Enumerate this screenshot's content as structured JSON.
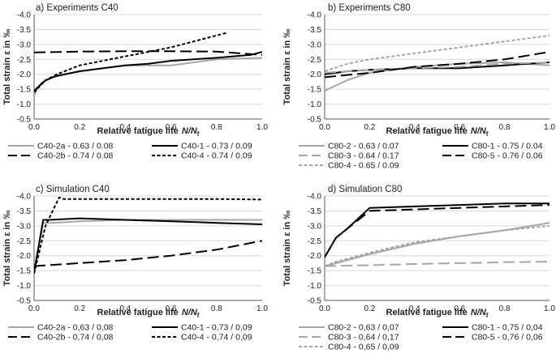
{
  "chart_data": [
    {
      "type": "line",
      "title": "a) Experiments C40",
      "xlabel": "Relative fatigue life",
      "xlabel_symbol": "N/N",
      "xlabel_sub": "f",
      "ylabel": "Total strain ε in ‰",
      "xlim": [
        0,
        1
      ],
      "ylim": [
        -4.0,
        -0.5
      ],
      "xticks": [
        "0.0",
        "0.2",
        "0.4",
        "0.6",
        "0.8",
        "1.0"
      ],
      "yticks": [
        "-4.0",
        "-3.5",
        "-3.0",
        "-2.5",
        "-2.0",
        "-1.5",
        "-1.0",
        "-0.5"
      ],
      "grid": true,
      "series": [
        {
          "name": "C40-2a - 0.63 / 0.08",
          "color": "#a6a6a6",
          "style": "solid",
          "x": [
            0,
            0.03,
            0.08,
            0.2,
            0.4,
            0.6,
            0.8,
            1.0
          ],
          "y": [
            -1.3,
            -1.7,
            -1.9,
            -2.1,
            -2.3,
            -2.3,
            -2.5,
            -2.55
          ]
        },
        {
          "name": "C40-1 - 0.73 / 0.09",
          "color": "#000000",
          "style": "solid",
          "x": [
            0,
            0.05,
            0.1,
            0.2,
            0.4,
            0.5,
            0.6,
            0.8,
            0.95,
            1.0
          ],
          "y": [
            -1.45,
            -1.8,
            -1.95,
            -2.1,
            -2.3,
            -2.35,
            -2.45,
            -2.55,
            -2.65,
            -2.75
          ]
        },
        {
          "name": "C40-2b - 0.74 / 0.08",
          "color": "#000000",
          "style": "longdash",
          "x": [
            0,
            0.2,
            0.4,
            0.6,
            0.8,
            1.0
          ],
          "y": [
            -2.73,
            -2.76,
            -2.77,
            -2.77,
            -2.76,
            -2.65
          ]
        },
        {
          "name": "C40-4 - 0.74 / 0.09",
          "color": "#000000",
          "style": "shortdash",
          "x": [
            0,
            0.05,
            0.1,
            0.2,
            0.4,
            0.6,
            0.8,
            0.85
          ],
          "y": [
            -1.4,
            -1.8,
            -2.0,
            -2.3,
            -2.6,
            -2.9,
            -3.3,
            -3.4
          ]
        }
      ]
    },
    {
      "type": "line",
      "title": "b) Experiments C80",
      "xlabel": "Relative fatigue life",
      "xlabel_symbol": "N/N",
      "xlabel_sub": "f",
      "ylabel": "Total strain ε in ‰",
      "xlim": [
        0,
        1
      ],
      "ylim": [
        -4.0,
        -0.5
      ],
      "xticks": [
        "0.0",
        "0.2",
        "0.4",
        "0.6",
        "0.8",
        "1.0"
      ],
      "yticks": [
        "-4.0",
        "-3.5",
        "-3.0",
        "-2.5",
        "-2.0",
        "-1.5",
        "-1.0",
        "-0.5"
      ],
      "grid": true,
      "series": [
        {
          "name": "C80-2 - 0.63 / 0.07",
          "color": "#a6a6a6",
          "style": "solid",
          "x": [
            0,
            0.1,
            0.2,
            0.4,
            0.6,
            0.8,
            1.0
          ],
          "y": [
            -1.45,
            -1.8,
            -2.05,
            -2.25,
            -2.35,
            -2.4,
            -2.3
          ]
        },
        {
          "name": "C80-1 - 0.75 / 0.04",
          "color": "#000000",
          "style": "solid",
          "x": [
            0,
            0.1,
            0.2,
            0.4,
            0.6,
            0.8,
            1.0
          ],
          "y": [
            -2.0,
            -2.1,
            -2.15,
            -2.2,
            -2.2,
            -2.3,
            -2.4
          ]
        },
        {
          "name": "C80-3 - 0.64 / 0.17",
          "color": "#a6a6a6",
          "style": "longdash",
          "x": [
            0,
            0.2,
            0.4,
            0.6,
            0.8,
            1.0
          ],
          "y": [
            -2.05,
            -2.15,
            -2.2,
            -2.25,
            -2.35,
            -2.4
          ]
        },
        {
          "name": "C80-5 - 0.76 / 0.06",
          "color": "#000000",
          "style": "longdash",
          "x": [
            0,
            0.2,
            0.4,
            0.6,
            0.8,
            1.0
          ],
          "y": [
            -1.9,
            -2.05,
            -2.25,
            -2.35,
            -2.5,
            -2.75
          ]
        },
        {
          "name": "C80-4 - 0.65 / 0.09",
          "color": "#a6a6a6",
          "style": "shortdash",
          "x": [
            0,
            0.1,
            0.2,
            0.4,
            0.6,
            0.8,
            1.0
          ],
          "y": [
            -2.1,
            -2.35,
            -2.5,
            -2.7,
            -2.9,
            -3.1,
            -3.3
          ]
        }
      ]
    },
    {
      "type": "line",
      "title": "c) Simulation C40",
      "xlabel": "Relative fatigue life",
      "xlabel_symbol": "N/N",
      "xlabel_sub": "f",
      "ylabel": "Total strain ε in ‰",
      "xlim": [
        0,
        1
      ],
      "ylim": [
        -4.0,
        -0.5
      ],
      "xticks": [
        "0.0",
        "0.2",
        "0.4",
        "0.6",
        "0.8",
        "1.0"
      ],
      "yticks": [
        "-4.0",
        "-3.5",
        "-3.0",
        "-2.5",
        "-2.0",
        "-1.5",
        "-1.0",
        "-0.5"
      ],
      "grid": true,
      "series": [
        {
          "name": "C40-2a - 0,63 / 0,08",
          "color": "#a6a6a6",
          "style": "solid",
          "x": [
            0,
            0.04,
            0.08,
            0.2,
            0.4,
            0.6,
            0.8,
            1.0
          ],
          "y": [
            -1.4,
            -3.1,
            -3.1,
            -3.15,
            -3.2,
            -3.2,
            -3.2,
            -3.2
          ]
        },
        {
          "name": "C40-1 - 0,73 / 0,09",
          "color": "#000000",
          "style": "solid",
          "x": [
            0,
            0.04,
            0.07,
            0.2,
            0.4,
            0.6,
            0.8,
            1.0
          ],
          "y": [
            -1.45,
            -3.2,
            -3.2,
            -3.25,
            -3.2,
            -3.15,
            -3.1,
            -3.05
          ]
        },
        {
          "name": "C40-2b - 0,74 / 0,08",
          "color": "#000000",
          "style": "longdash",
          "x": [
            0,
            0.2,
            0.4,
            0.6,
            0.8,
            1.0
          ],
          "y": [
            -1.65,
            -1.75,
            -1.85,
            -2.0,
            -2.2,
            -2.5
          ]
        },
        {
          "name": "C40-4 - 0,74 / 0,09",
          "color": "#000000",
          "style": "shortdash",
          "x": [
            0,
            0.05,
            0.11,
            0.13,
            0.2,
            0.4,
            0.6,
            0.8,
            1.0
          ],
          "y": [
            -1.4,
            -3.0,
            -3.95,
            -3.9,
            -3.9,
            -3.9,
            -3.9,
            -3.9,
            -3.88
          ]
        }
      ]
    },
    {
      "type": "line",
      "title": "d) Simulation C80",
      "xlabel": "Relative fatigue life",
      "xlabel_symbol": "N/N",
      "xlabel_sub": "f",
      "ylabel": "Total strain ε in ‰",
      "xlim": [
        0,
        1
      ],
      "ylim": [
        -4.0,
        -0.5
      ],
      "xticks": [
        "0.0",
        "0.2",
        "0.4",
        "0.6",
        "0.8",
        "1.0"
      ],
      "yticks": [
        "-4.0",
        "-3.5",
        "-3.0",
        "-2.5",
        "-2.0",
        "-1.5",
        "-1.0",
        "-0.5"
      ],
      "grid": true,
      "series": [
        {
          "name": "C80-2 - 0,63 / 0,07",
          "color": "#a6a6a6",
          "style": "solid",
          "x": [
            0,
            0.05,
            0.2,
            0.4,
            0.6,
            0.8,
            1.0
          ],
          "y": [
            -1.65,
            -1.75,
            -2.05,
            -2.4,
            -2.65,
            -2.85,
            -3.1
          ]
        },
        {
          "name": "C80-1 - 0,75 / 0,04",
          "color": "#000000",
          "style": "solid",
          "x": [
            0,
            0.05,
            0.1,
            0.2,
            0.4,
            0.6,
            0.8,
            1.0
          ],
          "y": [
            -1.95,
            -2.6,
            -2.9,
            -3.6,
            -3.65,
            -3.7,
            -3.75,
            -3.75
          ]
        },
        {
          "name": "C80-3 - 0,64 / 0,17",
          "color": "#a6a6a6",
          "style": "longdash",
          "x": [
            0,
            0.2,
            0.4,
            0.6,
            0.8,
            1.0
          ],
          "y": [
            -1.65,
            -1.68,
            -1.72,
            -1.75,
            -1.78,
            -1.8
          ]
        },
        {
          "name": "C80-5 - 0,76 / 0,06",
          "color": "#000000",
          "style": "longdash",
          "x": [
            0,
            0.05,
            0.1,
            0.2,
            0.4,
            0.6,
            0.8,
            1.0
          ],
          "y": [
            -1.95,
            -2.6,
            -2.9,
            -3.5,
            -3.55,
            -3.6,
            -3.65,
            -3.7
          ]
        },
        {
          "name": "C80-4 - 0,65 / 0,09",
          "color": "#a6a6a6",
          "style": "shortdash",
          "x": [
            0,
            0.05,
            0.2,
            0.4,
            0.6,
            0.8,
            1.0
          ],
          "y": [
            -1.65,
            -1.8,
            -2.1,
            -2.45,
            -2.65,
            -2.85,
            -3.0
          ]
        }
      ]
    }
  ]
}
